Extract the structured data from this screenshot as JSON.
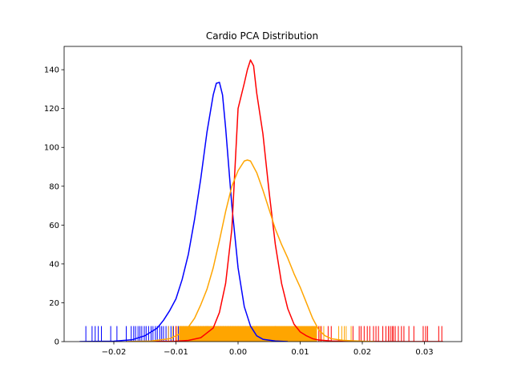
{
  "chart_data": {
    "type": "line",
    "title": "Cardio PCA Distribution",
    "xlabel": "",
    "ylabel": "",
    "xlim": [
      -0.028,
      0.036
    ],
    "ylim": [
      0,
      152
    ],
    "x_ticks": [
      -0.02,
      -0.01,
      0.0,
      0.01,
      0.02,
      0.03
    ],
    "x_tick_labels": [
      "−0.02",
      "−0.01",
      "0.00",
      "0.01",
      "0.02",
      "0.03"
    ],
    "y_ticks": [
      0,
      20,
      40,
      60,
      80,
      100,
      120,
      140
    ],
    "y_tick_labels": [
      "0",
      "20",
      "40",
      "60",
      "80",
      "100",
      "120",
      "140"
    ],
    "grid": false,
    "rug_height": 8,
    "series": [
      {
        "color": "#0000ff",
        "curve": [
          [
            -0.0255,
            0
          ],
          [
            -0.02,
            0.2
          ],
          [
            -0.017,
            1
          ],
          [
            -0.015,
            3
          ],
          [
            -0.013,
            7
          ],
          [
            -0.012,
            11
          ],
          [
            -0.011,
            16
          ],
          [
            -0.01,
            22
          ],
          [
            -0.009,
            32
          ],
          [
            -0.008,
            45
          ],
          [
            -0.007,
            63
          ],
          [
            -0.006,
            84
          ],
          [
            -0.005,
            108
          ],
          [
            -0.004,
            127
          ],
          [
            -0.0035,
            133
          ],
          [
            -0.003,
            133.5
          ],
          [
            -0.0025,
            127
          ],
          [
            -0.002,
            110
          ],
          [
            -0.0015,
            90
          ],
          [
            -0.001,
            70
          ],
          [
            0.0,
            38
          ],
          [
            0.001,
            18
          ],
          [
            0.002,
            8
          ],
          [
            0.003,
            3
          ],
          [
            0.004,
            1.2
          ],
          [
            0.006,
            0.3
          ],
          [
            0.008,
            0
          ]
        ],
        "rug": [
          -0.0245,
          -0.0235,
          -0.023,
          -0.0225,
          -0.022,
          -0.0205,
          -0.0195,
          -0.018,
          -0.0172,
          -0.0168,
          -0.0165,
          -0.0161,
          -0.0158,
          -0.0155,
          -0.0151,
          -0.0148,
          -0.0144,
          -0.014,
          -0.0137,
          -0.0133,
          -0.013,
          -0.0126,
          -0.0123,
          -0.012,
          -0.0116,
          -0.0112,
          -0.0108,
          -0.0104,
          -0.01,
          -0.0096,
          -0.0092,
          -0.0088,
          -0.0084,
          -0.008,
          -0.0076,
          -0.0072,
          -0.0068,
          -0.0064,
          -0.006,
          -0.0056,
          -0.0052,
          -0.0048,
          -0.0044,
          -0.004,
          -0.0036,
          -0.0032,
          -0.0028,
          -0.0024,
          -0.002,
          -0.0016,
          -0.0012,
          -0.0008,
          -0.0004,
          0.0,
          0.0004,
          0.0008,
          0.0012,
          0.0016,
          0.002,
          0.0025,
          0.003
        ]
      },
      {
        "color": "#ff0000",
        "curve": [
          [
            -0.016,
            0
          ],
          [
            -0.01,
            0.2
          ],
          [
            -0.008,
            0.6
          ],
          [
            -0.006,
            2
          ],
          [
            -0.004,
            7
          ],
          [
            -0.003,
            15
          ],
          [
            -0.002,
            30
          ],
          [
            -0.001,
            58
          ],
          [
            0.0,
            120
          ],
          [
            0.001,
            133
          ],
          [
            0.0015,
            140
          ],
          [
            0.002,
            145
          ],
          [
            0.0025,
            142
          ],
          [
            0.003,
            128
          ],
          [
            0.004,
            107
          ],
          [
            0.005,
            77
          ],
          [
            0.006,
            50
          ],
          [
            0.007,
            30
          ],
          [
            0.008,
            17
          ],
          [
            0.009,
            9
          ],
          [
            0.01,
            5
          ],
          [
            0.011,
            3
          ],
          [
            0.012,
            1.5
          ],
          [
            0.013,
            0.8
          ],
          [
            0.015,
            0.3
          ],
          [
            0.02,
            0.05
          ],
          [
            0.025,
            0.02
          ],
          [
            0.033,
            0
          ]
        ],
        "rug": [
          -0.01,
          -0.005,
          0.0,
          0.003,
          0.006,
          0.009,
          0.012,
          0.013,
          0.0134,
          0.0145,
          0.015,
          0.0185,
          0.0195,
          0.0198,
          0.0203,
          0.0208,
          0.0212,
          0.0218,
          0.0222,
          0.0226,
          0.0233,
          0.0238,
          0.0242,
          0.0245,
          0.0248,
          0.025,
          0.0253,
          0.0258,
          0.0263,
          0.0267,
          0.0275,
          0.0283,
          0.0298,
          0.0302,
          0.0305,
          0.0323,
          0.0328
        ]
      },
      {
        "color": "#ffa500",
        "curve": [
          [
            -0.018,
            0
          ],
          [
            -0.014,
            0.3
          ],
          [
            -0.011,
            1.5
          ],
          [
            -0.009,
            4.5
          ],
          [
            -0.008,
            7.5
          ],
          [
            -0.007,
            12
          ],
          [
            -0.006,
            19
          ],
          [
            -0.005,
            27
          ],
          [
            -0.004,
            38
          ],
          [
            -0.003,
            52
          ],
          [
            -0.002,
            67
          ],
          [
            -0.001,
            80
          ],
          [
            0.0,
            88
          ],
          [
            0.001,
            93
          ],
          [
            0.0015,
            93.5
          ],
          [
            0.002,
            93
          ],
          [
            0.003,
            87
          ],
          [
            0.004,
            78
          ],
          [
            0.005,
            68
          ],
          [
            0.006,
            58
          ],
          [
            0.007,
            50
          ],
          [
            0.008,
            43
          ],
          [
            0.009,
            35
          ],
          [
            0.01,
            28
          ],
          [
            0.011,
            20
          ],
          [
            0.012,
            12
          ],
          [
            0.013,
            6
          ],
          [
            0.014,
            3
          ],
          [
            0.015,
            1.5
          ],
          [
            0.017,
            0.6
          ],
          [
            0.02,
            0.2
          ],
          [
            0.022,
            0
          ]
        ],
        "rug_dense_range": [
          -0.0095,
          0.0127
        ],
        "rug": [
          -0.0112,
          -0.0105,
          -0.0098,
          0.0132,
          0.0138,
          0.0162,
          0.0167,
          0.0171,
          0.0174,
          0.0182
        ]
      }
    ]
  }
}
